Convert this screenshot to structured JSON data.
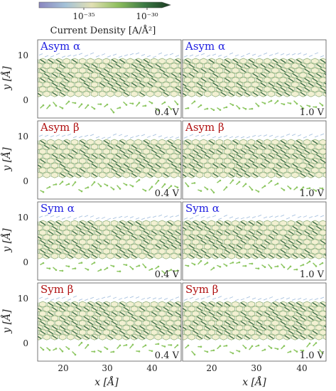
{
  "colorbar": {
    "tick_labels": [
      "10⁻³⁵",
      "10⁻³⁰"
    ],
    "label": "Current  Density [A/Å²]",
    "colors": [
      "#8a86c0",
      "#a4c2d8",
      "#e2e0b4",
      "#8fbf5e",
      "#3d7a45",
      "#1a3a22"
    ]
  },
  "y_axis": {
    "label": "y [Å]",
    "ticks": [
      "10",
      "0"
    ]
  },
  "x_axis": {
    "label": "x [Å]",
    "ticks": [
      "20",
      "30",
      "40"
    ]
  },
  "panels": [
    {
      "label": "Asym α",
      "voltage": "0.4 V",
      "label_color": "#2020e0"
    },
    {
      "label": "Asym α",
      "voltage": "1.0 V",
      "label_color": "#2020e0"
    },
    {
      "label": "Asym β",
      "voltage": "0.4 V",
      "label_color": "#b01010"
    },
    {
      "label": "Asym β",
      "voltage": "1.0 V",
      "label_color": "#b01010"
    },
    {
      "label": "Sym α",
      "voltage": "0.4 V",
      "label_color": "#2020e0"
    },
    {
      "label": "Sym α",
      "voltage": "1.0 V",
      "label_color": "#2020e0"
    },
    {
      "label": "Sym β",
      "voltage": "0.4 V",
      "label_color": "#b01010"
    },
    {
      "label": "Sym β",
      "voltage": "1.0 V",
      "label_color": "#b01010"
    }
  ],
  "ribbon_colors": {
    "hex_edge": "#8fb07a",
    "hex_fill": "#f2f0d2",
    "bond_strong": "#3d6e48",
    "edge_arrows": "#8cc660",
    "edge_faint": "#a9c3e0"
  }
}
